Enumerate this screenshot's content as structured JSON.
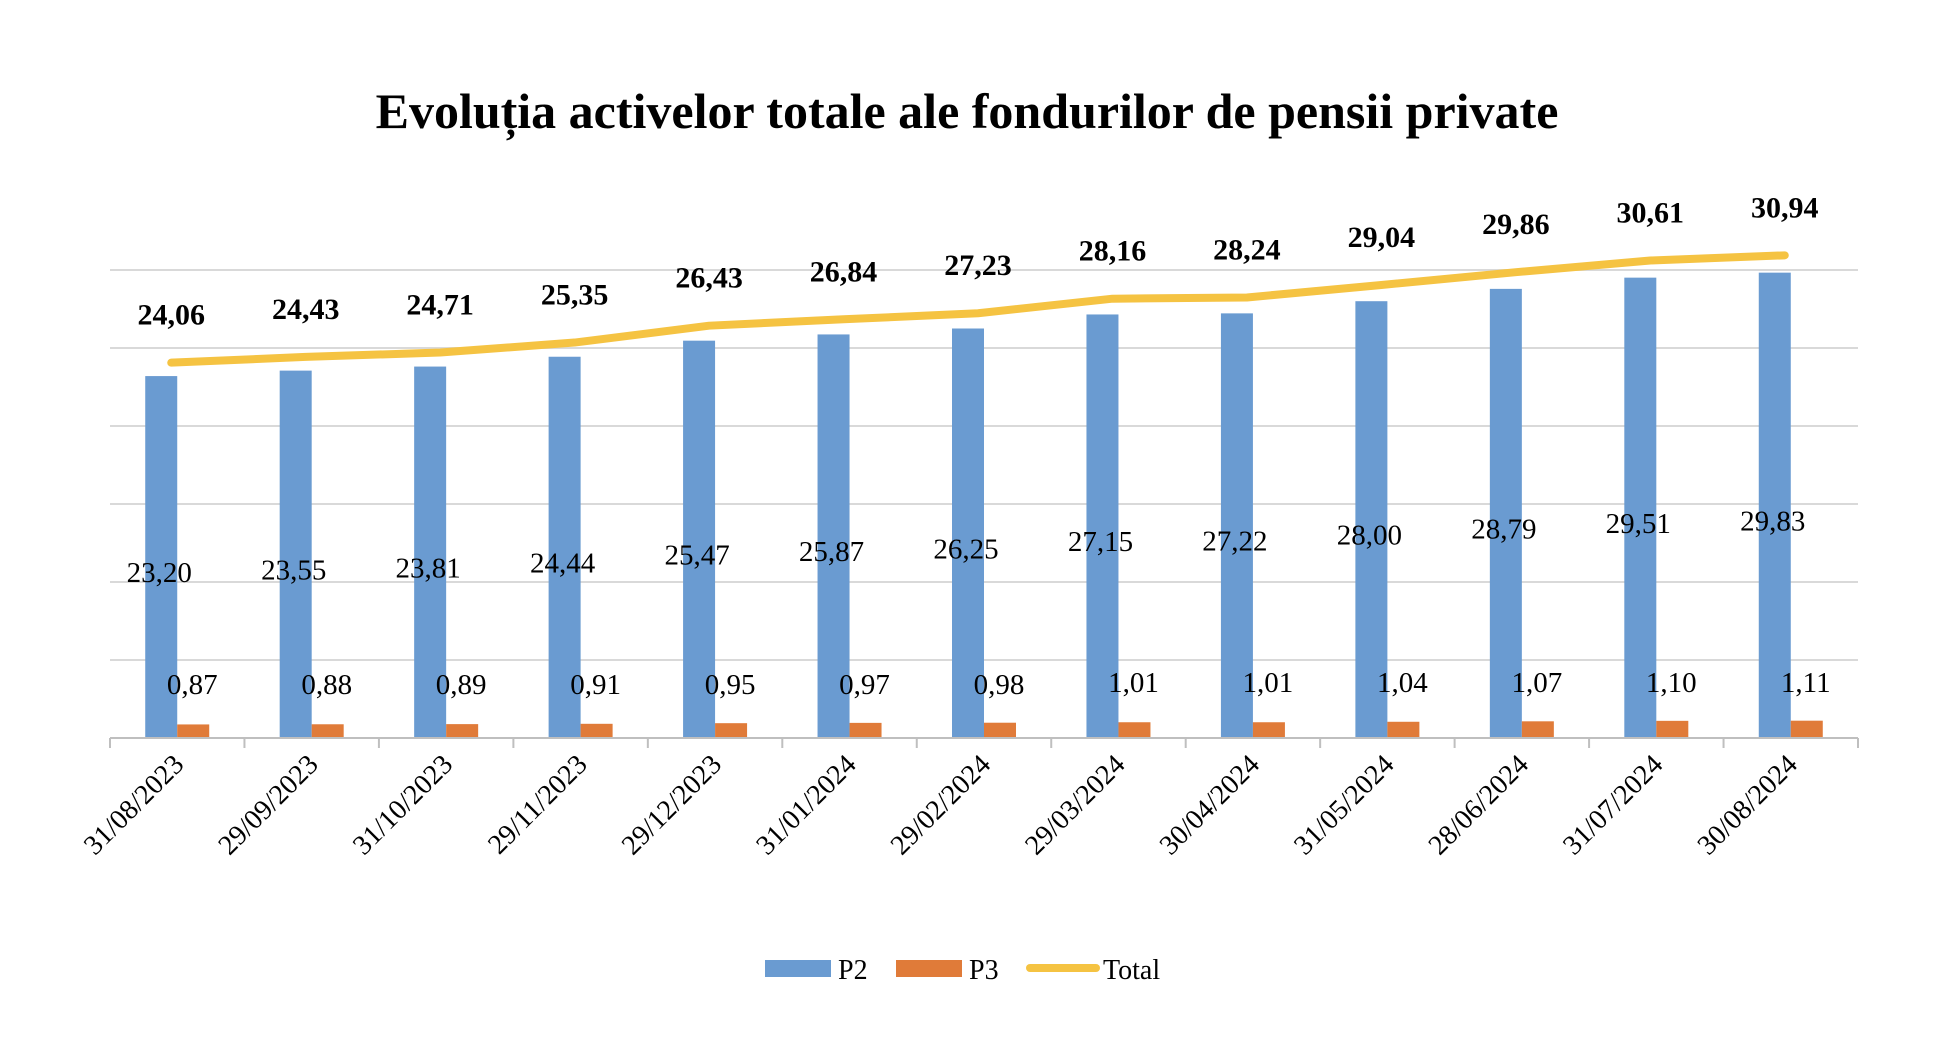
{
  "chart_data": {
    "type": "bar",
    "title": "Evoluția activelor totale ale fondurilor de pensii private",
    "categories": [
      "31/08/2023",
      "29/09/2023",
      "31/10/2023",
      "29/11/2023",
      "29/12/2023",
      "31/01/2024",
      "29/02/2024",
      "29/03/2024",
      "30/04/2024",
      "31/05/2024",
      "28/06/2024",
      "31/07/2024",
      "30/08/2024"
    ],
    "series": [
      {
        "name": "P2",
        "kind": "bar",
        "color": "#6a9bd1",
        "values": [
          23.2,
          23.55,
          23.81,
          24.44,
          25.47,
          25.87,
          26.25,
          27.15,
          27.22,
          28.0,
          28.79,
          29.51,
          29.83
        ],
        "labels": [
          "23,20",
          "23,55",
          "23,81",
          "24,44",
          "25,47",
          "25,87",
          "26,25",
          "27,15",
          "27,22",
          "28,00",
          "28,79",
          "29,51",
          "29,83"
        ]
      },
      {
        "name": "P3",
        "kind": "bar",
        "color": "#e07b39",
        "values": [
          0.87,
          0.88,
          0.89,
          0.91,
          0.95,
          0.97,
          0.98,
          1.01,
          1.01,
          1.04,
          1.07,
          1.1,
          1.11
        ],
        "labels": [
          "0,87",
          "0,88",
          "0,89",
          "0,91",
          "0,95",
          "0,97",
          "0,98",
          "1,01",
          "1,01",
          "1,04",
          "1,07",
          "1,10",
          "1,11"
        ]
      },
      {
        "name": "Total",
        "kind": "line",
        "color": "#f5c342",
        "values": [
          24.06,
          24.43,
          24.71,
          25.35,
          26.43,
          26.84,
          27.23,
          28.16,
          28.24,
          29.04,
          29.86,
          30.61,
          30.94
        ],
        "labels": [
          "24,06",
          "24,43",
          "24,71",
          "25,35",
          "26,43",
          "26,84",
          "27,23",
          "28,16",
          "28,24",
          "29,04",
          "29,86",
          "30,61",
          "30,94"
        ]
      }
    ],
    "ylim": [
      0,
      35
    ],
    "grid": true,
    "legend": "bottom"
  }
}
